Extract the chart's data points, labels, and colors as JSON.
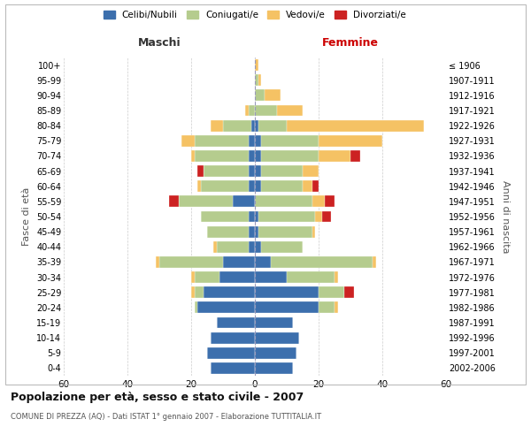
{
  "age_groups": [
    "0-4",
    "5-9",
    "10-14",
    "15-19",
    "20-24",
    "25-29",
    "30-34",
    "35-39",
    "40-44",
    "45-49",
    "50-54",
    "55-59",
    "60-64",
    "65-69",
    "70-74",
    "75-79",
    "80-84",
    "85-89",
    "90-94",
    "95-99",
    "100+"
  ],
  "birth_years": [
    "2002-2006",
    "1997-2001",
    "1992-1996",
    "1987-1991",
    "1982-1986",
    "1977-1981",
    "1972-1976",
    "1967-1971",
    "1962-1966",
    "1957-1961",
    "1952-1956",
    "1947-1951",
    "1942-1946",
    "1937-1941",
    "1932-1936",
    "1927-1931",
    "1922-1926",
    "1917-1921",
    "1912-1916",
    "1907-1911",
    "≤ 1906"
  ],
  "colors": {
    "celibi": "#3c6fad",
    "coniugati": "#b5cc8e",
    "vedovi": "#f5c264",
    "divorziati": "#cc2222"
  },
  "maschi": {
    "celibi": [
      14,
      15,
      14,
      12,
      18,
      16,
      11,
      10,
      2,
      2,
      2,
      7,
      2,
      2,
      2,
      2,
      1,
      0,
      0,
      0,
      0
    ],
    "coniugati": [
      0,
      0,
      0,
      0,
      1,
      3,
      8,
      20,
      10,
      13,
      15,
      17,
      15,
      14,
      17,
      17,
      9,
      2,
      0,
      0,
      0
    ],
    "vedovi": [
      0,
      0,
      0,
      0,
      0,
      1,
      1,
      1,
      1,
      0,
      0,
      0,
      1,
      0,
      1,
      4,
      4,
      1,
      0,
      0,
      0
    ],
    "divorziati": [
      0,
      0,
      0,
      0,
      0,
      0,
      0,
      0,
      0,
      0,
      0,
      3,
      0,
      2,
      0,
      0,
      0,
      0,
      0,
      0,
      0
    ]
  },
  "femmine": {
    "celibi": [
      12,
      13,
      14,
      12,
      20,
      20,
      10,
      5,
      2,
      1,
      1,
      0,
      2,
      2,
      2,
      2,
      1,
      0,
      0,
      0,
      0
    ],
    "coniugati": [
      0,
      0,
      0,
      0,
      5,
      8,
      15,
      32,
      13,
      17,
      18,
      18,
      13,
      13,
      18,
      18,
      9,
      7,
      3,
      1,
      0
    ],
    "vedovi": [
      0,
      0,
      0,
      0,
      1,
      0,
      1,
      1,
      0,
      1,
      2,
      4,
      3,
      5,
      10,
      20,
      43,
      8,
      5,
      1,
      1
    ],
    "divorziati": [
      0,
      0,
      0,
      0,
      0,
      3,
      0,
      0,
      0,
      0,
      3,
      3,
      2,
      0,
      3,
      0,
      0,
      0,
      0,
      0,
      0
    ]
  },
  "title": "Popolazione per età, sesso e stato civile - 2007",
  "subtitle": "COMUNE DI PREZZA (AQ) - Dati ISTAT 1° gennaio 2007 - Elaborazione TUTTITALIA.IT",
  "xlabel_left": "Maschi",
  "xlabel_right": "Femmine",
  "ylabel_left": "Fasce di età",
  "ylabel_right": "Anni di nascita",
  "xlim": 60,
  "background_color": "#ffffff",
  "grid_color": "#cccccc"
}
